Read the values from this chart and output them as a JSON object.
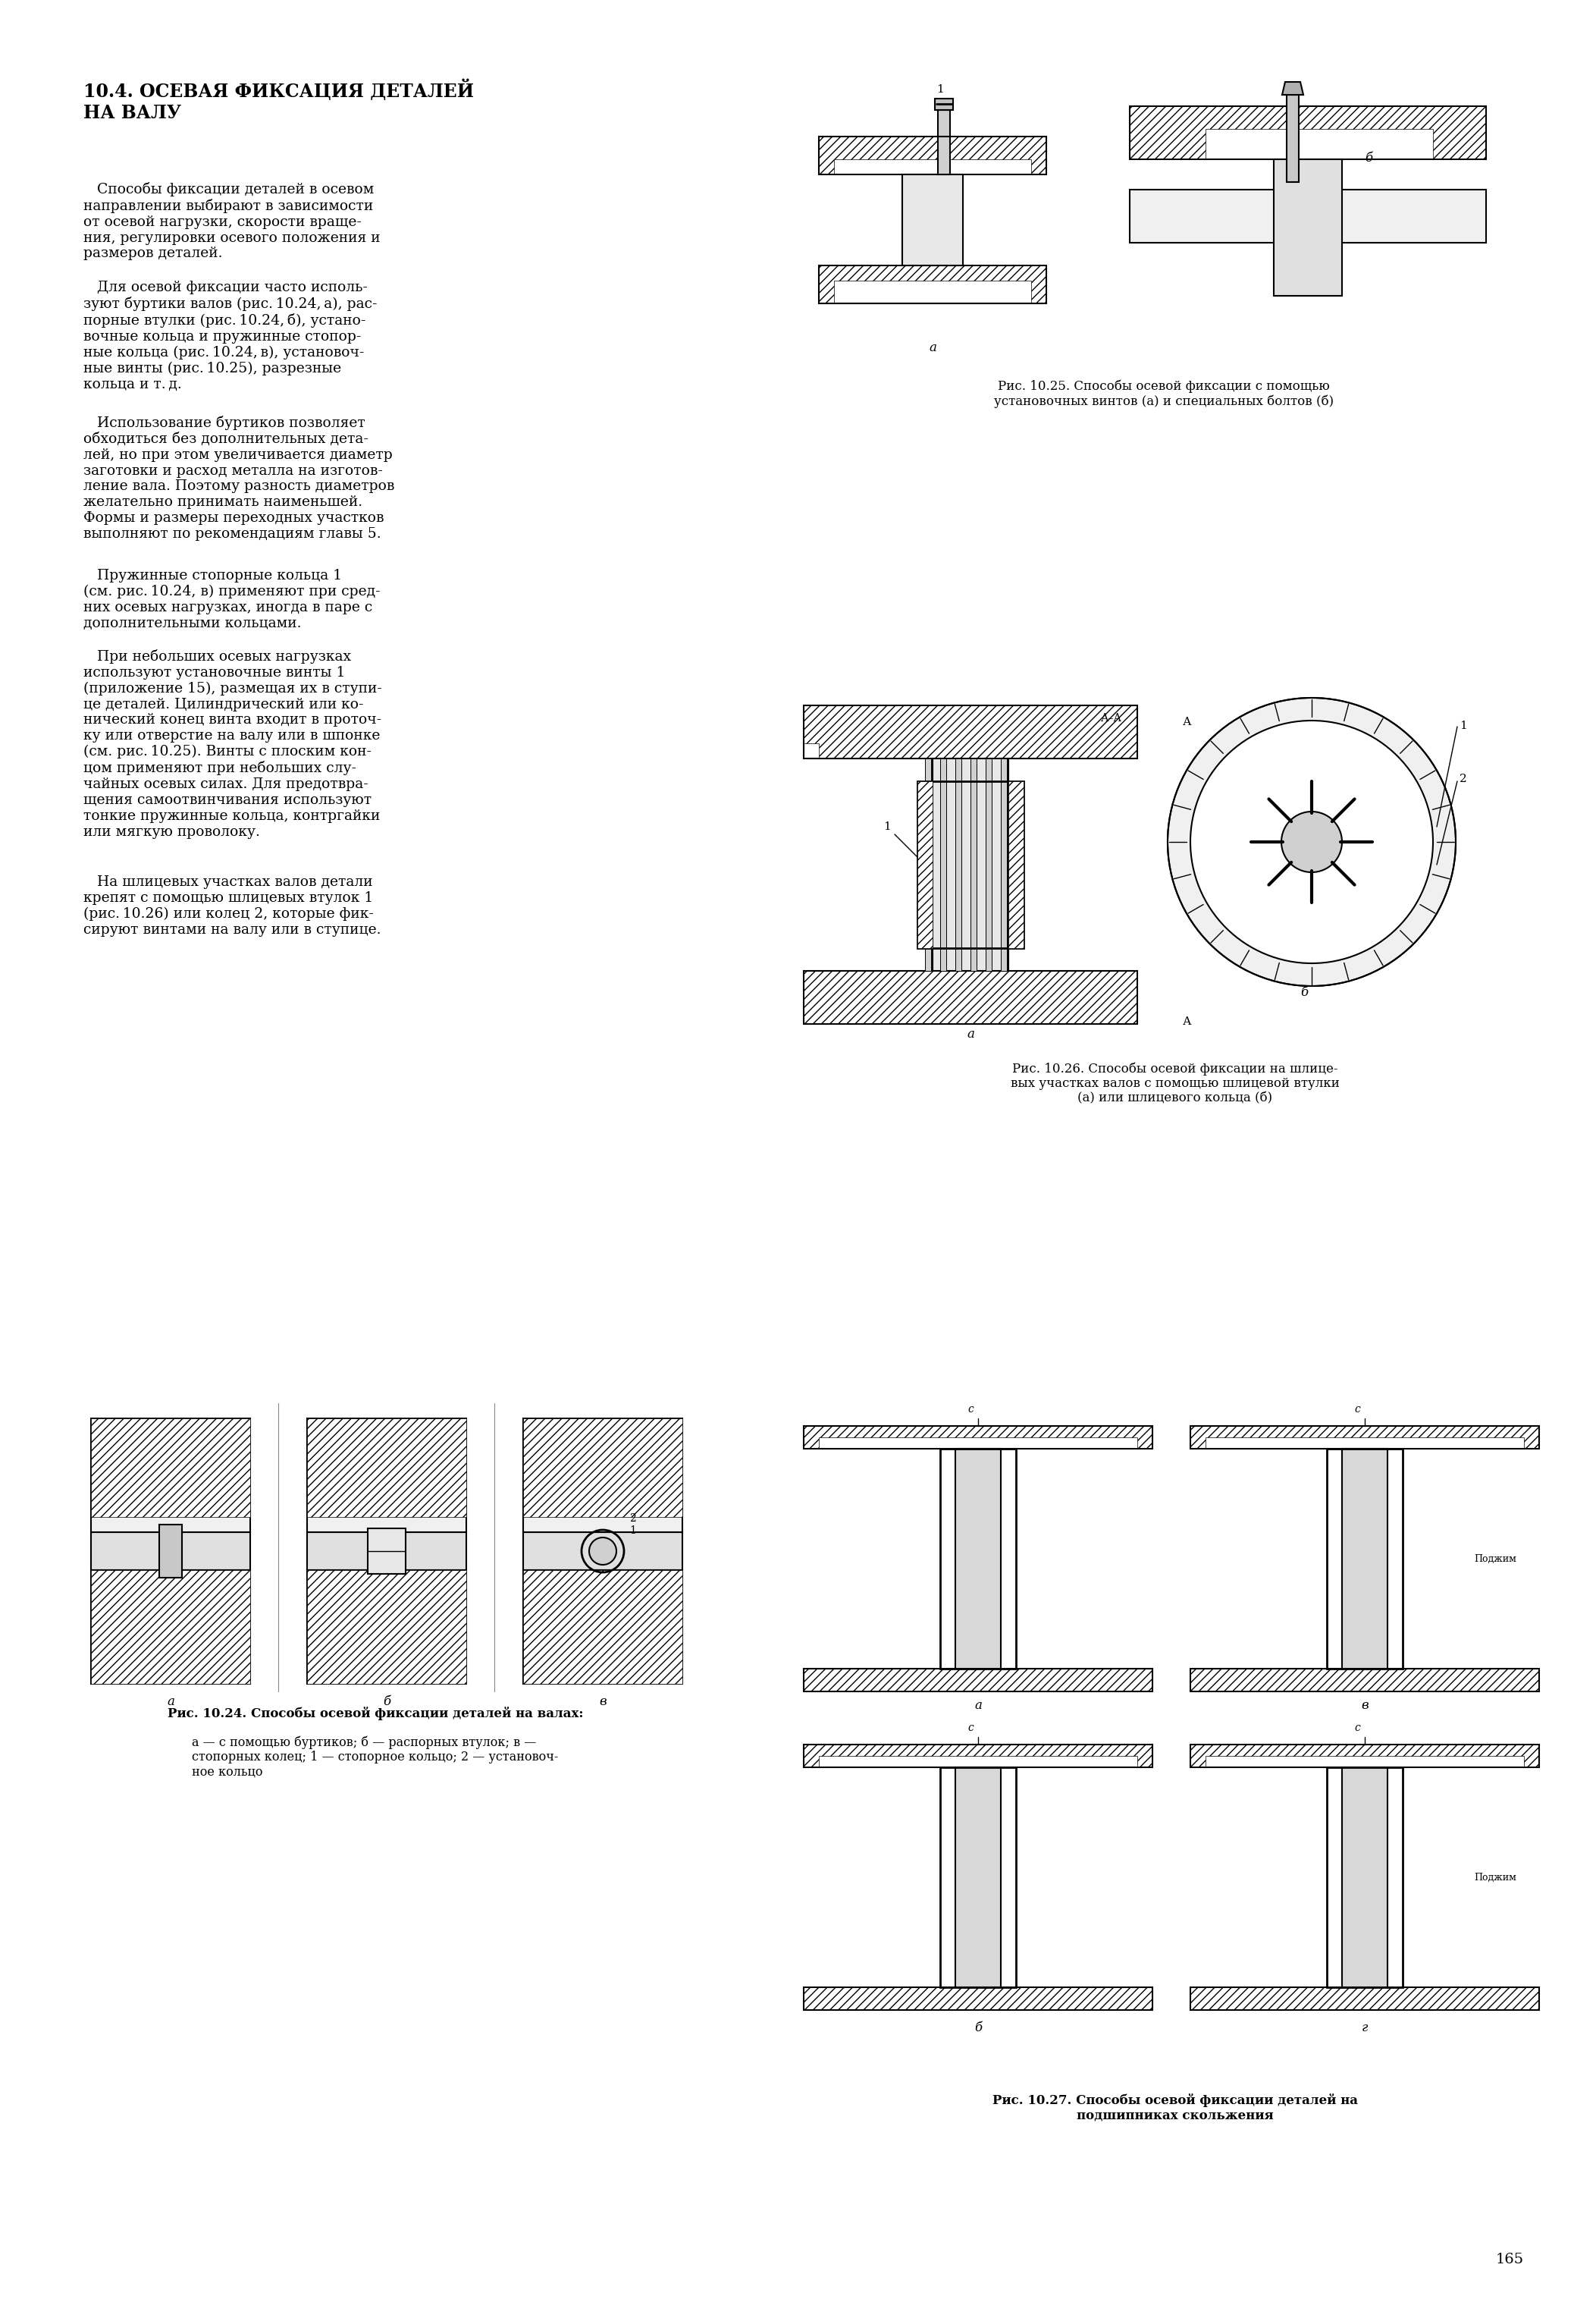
{
  "page_width": 20.45,
  "page_height": 30.0,
  "bg_color": "#ffffff",
  "text_color": "#000000",
  "title": "10.4. ОСЕВАЯ ФИКСАЦИЯ ДЕТАЛЕЙ\nНА ВАЛУ",
  "page_number": "165",
  "paragraph1": "   Способы фиксации деталей в осевом направлении выбирают в зависимости от осевой нагрузки, скорости вращения, регулировки осевого положения и размеров деталей.",
  "paragraph2": "   Для осевой фиксации часто используют буртики валов (рис. 10.24, а), распорные втулки (рис. 10.24, б), установочные кольца и пружинные стопорные кольца (рис. 10.24, в), установочные винты (рис. 10.25), разрезные кольца и т. д.",
  "paragraph3": "   Использование буртиков позволяет обходиться без дополнительных деталей, но при этом увеличивается диаметр заготовки и расход металла на изготовление вала. Поэтому разность диаметров желательно принимать наименьшей. Формы и размеры переходных участков выполняют по рекомендациям главы 5.",
  "paragraph4": "   Пружинные стопорные кольца 1 (см. рис. 10.24, в) применяют при средних осевых нагрузках, иногда в паре с дополнительными кольцами.",
  "paragraph5": "   При небольших осевых нагрузках используют установочные винты 1 (приложение 15), размещая их в ступице деталей. Цилиндрический или конический конец винта входит в проточку или отверстие на валу или в шпонке (см. рис. 10.25). Винты с плоским концом применяют при небольших случайных осевых силах. Для предотвращения самоотвинчивания используют тонкие пружинные кольца, контргайки или мягкую проволоку.",
  "paragraph6": "   На шлицевых участках валов детали крепят с помощью шлицевых втулок 1 (рис. 10.26) или колец 2, которые фиксируют винтами на валу или в ступице.",
  "fig1024_caption": "Рис. 10.24. Способы осевой фиксации деталей на валах:",
  "fig1024_sub": "а — с помощью буртиков; б — распорных втулок; в —\nстопорных колец; 1 — стопорное кольцо; 2 — установоч-\nное кольцо",
  "fig1025_caption": "Рис. 10.25. Способы осевой фиксации с помощью\nустановочных винтов (а) и специальных болтов (б)",
  "fig1026_caption": "Рис. 10.26. Способы осевой фиксации на шлице-\nвых участках валов с помощью шлицевой втулки\n(а) или шлицевого кольца (б)",
  "fig1027_caption": "Рис. 10.27. Способы осевой фиксации деталей на\nподшипниках скольжения"
}
